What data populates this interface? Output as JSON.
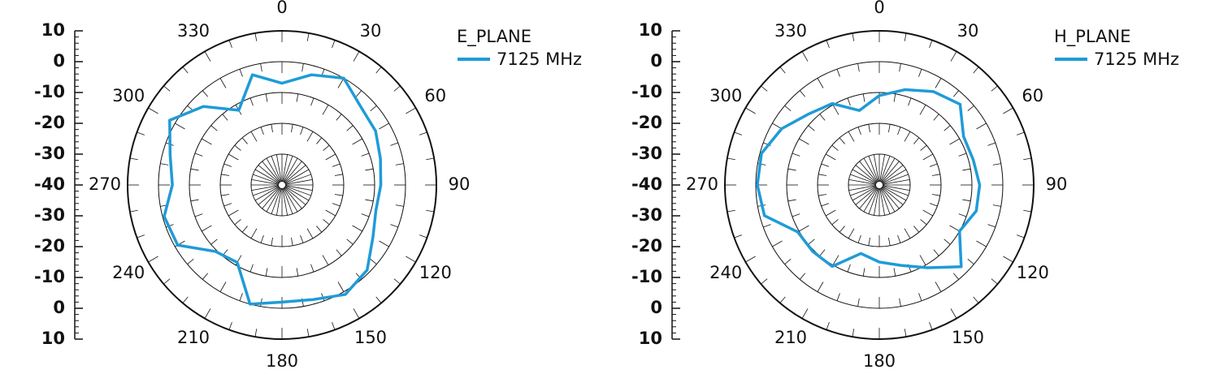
{
  "chart_data": [
    {
      "type": "polar",
      "legend_title": "E_PLANE",
      "theta": [
        0,
        15,
        30,
        45,
        60,
        75,
        90,
        105,
        120,
        135,
        150,
        165,
        180,
        195,
        210,
        225,
        240,
        255,
        270,
        285,
        300,
        315,
        330,
        345
      ],
      "series": [
        {
          "name": "7125 MHz",
          "color": "#1f9bd7",
          "values": [
            -7,
            -3,
            0,
            -4,
            -5,
            -7,
            -8,
            -8.5,
            -6,
            -1,
            1,
            -1.5,
            -2,
            0,
            -11,
            -9.5,
            -1,
            -0.5,
            -4.5,
            -2.5,
            2,
            -4,
            -12,
            -3
          ]
        }
      ],
      "rlim": [
        -40,
        10
      ],
      "rticks": [
        -40,
        -30,
        -20,
        -10,
        0,
        10
      ],
      "thetaticks": [
        0,
        30,
        60,
        90,
        120,
        150,
        180,
        210,
        240,
        270,
        300,
        330
      ]
    },
    {
      "type": "polar",
      "legend_title": "H_PLANE",
      "theta": [
        0,
        15,
        30,
        45,
        60,
        75,
        90,
        105,
        120,
        135,
        150,
        165,
        180,
        195,
        210,
        225,
        240,
        255,
        270,
        285,
        300,
        315,
        330,
        345
      ],
      "series": [
        {
          "name": "7125 MHz",
          "color": "#1f9bd7",
          "values": [
            -11,
            -8,
            -5,
            -3,
            -8.5,
            -8.5,
            -7.5,
            -7.5,
            -10,
            -2.5,
            -9,
            -13,
            -15,
            -17,
            -9.5,
            -9.5,
            -9.5,
            -1.5,
            -0.5,
            -0.5,
            -3.5,
            -7.5,
            -9.5,
            -15
          ]
        }
      ],
      "rlim": [
        -40,
        10
      ],
      "rticks": [
        -40,
        -30,
        -20,
        -10,
        0,
        10
      ],
      "thetaticks": [
        0,
        30,
        60,
        90,
        120,
        150,
        180,
        210,
        240,
        270,
        300,
        330
      ]
    }
  ]
}
